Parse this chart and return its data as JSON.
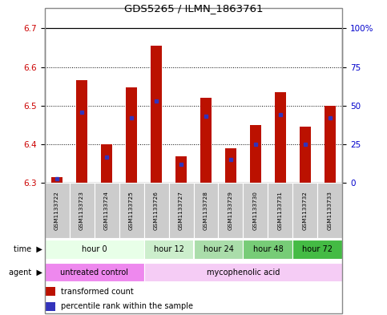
{
  "title": "GDS5265 / ILMN_1863761",
  "samples": [
    "GSM1133722",
    "GSM1133723",
    "GSM1133724",
    "GSM1133725",
    "GSM1133726",
    "GSM1133727",
    "GSM1133728",
    "GSM1133729",
    "GSM1133730",
    "GSM1133731",
    "GSM1133732",
    "GSM1133733"
  ],
  "bar_base": 6.3,
  "bar_tops": [
    6.315,
    6.565,
    6.4,
    6.548,
    6.655,
    6.37,
    6.52,
    6.39,
    6.45,
    6.535,
    6.445,
    6.5
  ],
  "percentile_vals": [
    3,
    46,
    17,
    42,
    53,
    12,
    43,
    15,
    25,
    44,
    25,
    42
  ],
  "ylim_left": [
    6.3,
    6.7
  ],
  "ylim_right": [
    0,
    100
  ],
  "yticks_left": [
    6.3,
    6.4,
    6.5,
    6.6,
    6.7
  ],
  "yticks_right": [
    0,
    25,
    50,
    75,
    100
  ],
  "ytick_labels_right": [
    "0",
    "25",
    "50",
    "75",
    "100%"
  ],
  "bar_color": "#bb1100",
  "blue_color": "#3333bb",
  "grid_color": "#000000",
  "time_groups": [
    {
      "label": "hour 0",
      "start": 0,
      "end": 4,
      "color": "#e8ffe8"
    },
    {
      "label": "hour 12",
      "start": 4,
      "end": 6,
      "color": "#cceecc"
    },
    {
      "label": "hour 24",
      "start": 6,
      "end": 8,
      "color": "#aaddaa"
    },
    {
      "label": "hour 48",
      "start": 8,
      "end": 10,
      "color": "#77cc77"
    },
    {
      "label": "hour 72",
      "start": 10,
      "end": 12,
      "color": "#44bb44"
    }
  ],
  "agent_groups": [
    {
      "label": "untreated control",
      "start": 0,
      "end": 4,
      "color": "#ee88ee"
    },
    {
      "label": "mycophenolic acid",
      "start": 4,
      "end": 12,
      "color": "#f5ccf5"
    }
  ],
  "legend_items": [
    {
      "label": "transformed count",
      "color": "#bb1100"
    },
    {
      "label": "percentile rank within the sample",
      "color": "#3333bb"
    }
  ],
  "left_axis_color": "#cc0000",
  "right_axis_color": "#0000cc",
  "bar_width": 0.45,
  "fig_border_color": "#888888"
}
